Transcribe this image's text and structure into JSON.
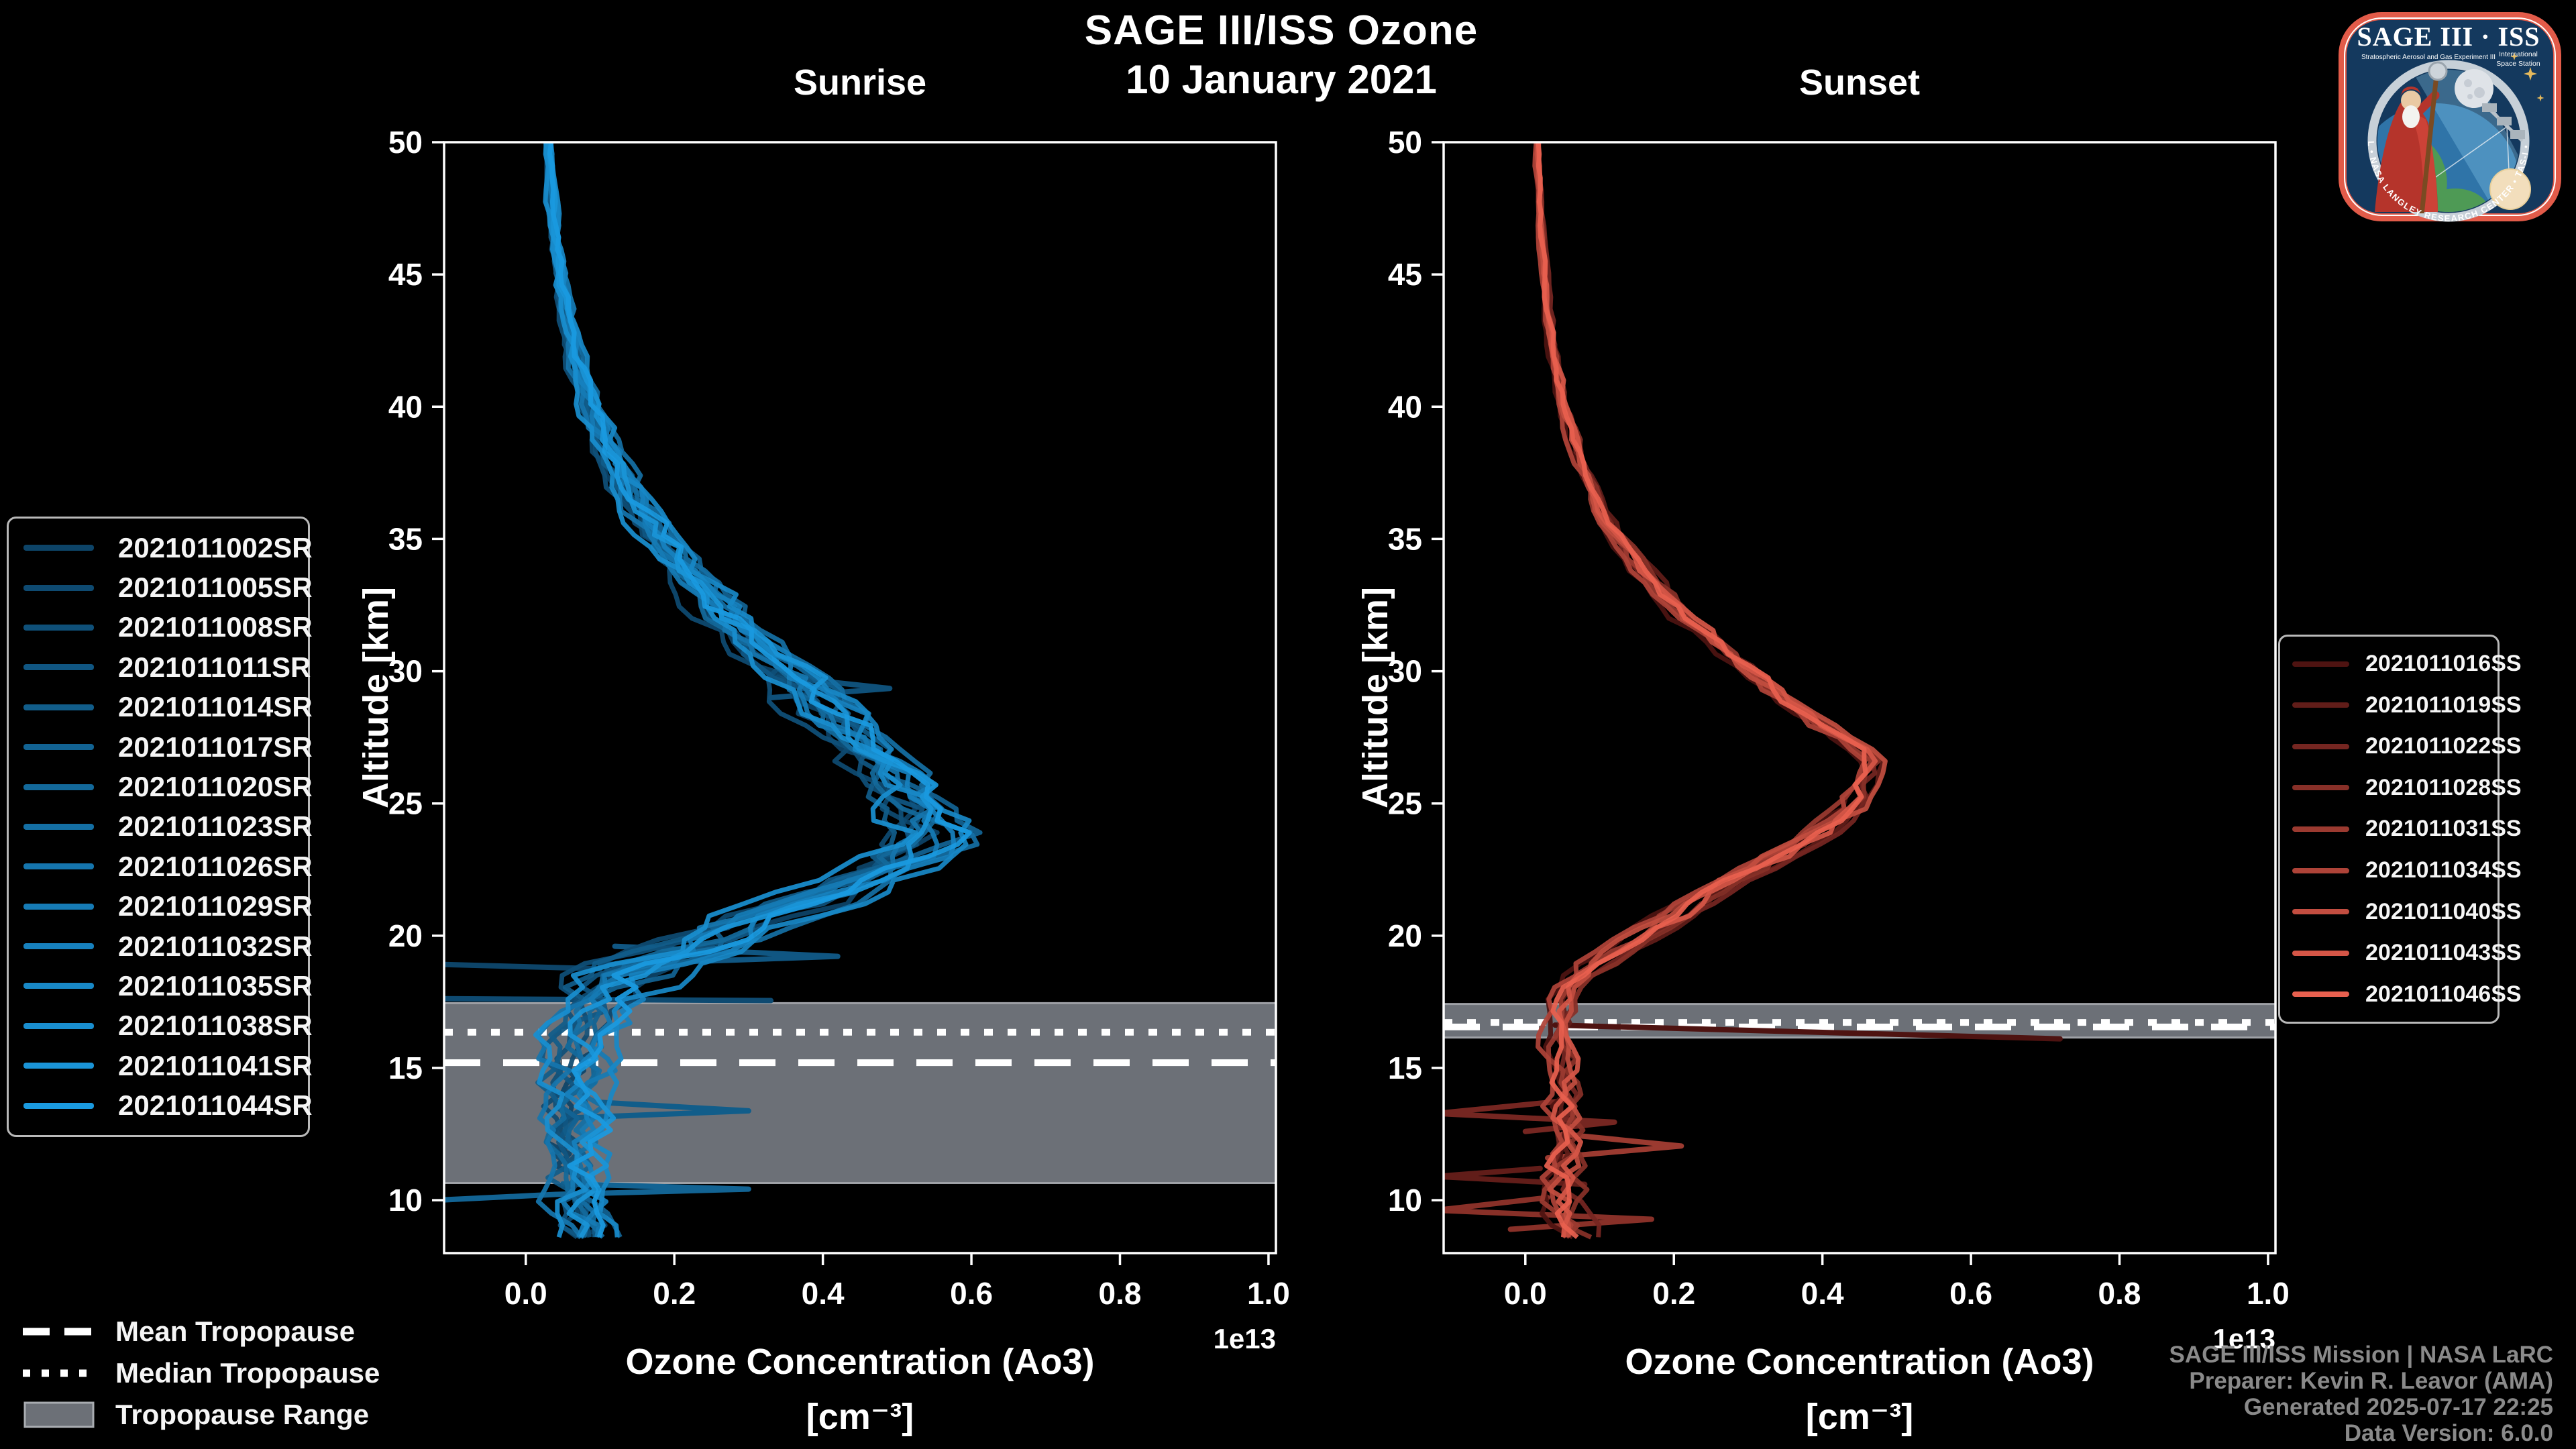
{
  "header": {
    "title": "SAGE III/ISS Ozone",
    "date": "10 January 2021"
  },
  "logo": {
    "title": "SAGE III · ISS",
    "subtitle": "Stratospheric Aerosol and Gas Experiment III",
    "iss_line1": "International",
    "iss_line2": "Space Station",
    "ring_text": "BALL • NASA LANGLEY RESEARCH CENTER • TAS-I • ESA"
  },
  "tropopause_legend": {
    "mean": "Mean Tropopause",
    "median": "Median Tropopause",
    "range": "Tropopause Range"
  },
  "footer": {
    "line1": "SAGE III/ISS Mission | NASA LaRC",
    "line2": "Preparer: Kevin R. Leavor (AMA)",
    "line3": "Generated 2025-07-17 22:25",
    "line4": "Data Version: 6.0.0"
  },
  "colors": {
    "background": "#000000",
    "text": "#ffffff",
    "footer_text": "#8a8a8a",
    "band": "#6C7077",
    "band_edge": "#9EA1A6",
    "legend_border": "#b9b9b9",
    "tropopause_line": "#ffffff"
  },
  "chart_data": [
    {
      "type": "line",
      "title": "Sunrise",
      "xlabel": "Ozone Concentration (Ao3)",
      "xlabel_units": "[cm⁻³]",
      "ylabel": "Altitude [km]",
      "axis_offset_label": "1e13",
      "xlim": [
        -0.11,
        1.01
      ],
      "ylim": [
        8,
        50
      ],
      "xticks": [
        0.0,
        0.2,
        0.4,
        0.6,
        0.8,
        1.0
      ],
      "yticks": [
        10,
        15,
        20,
        25,
        30,
        35,
        40,
        45,
        50
      ],
      "x_units_scale": "1e13 cm^-3",
      "legend_position": "left",
      "tropopause": {
        "mean_km": 15.2,
        "median_km": 16.35,
        "range_km": [
          10.65,
          17.45
        ]
      },
      "mean_profile": [
        [
          50,
          0.03
        ],
        [
          48,
          0.035
        ],
        [
          46,
          0.04
        ],
        [
          44,
          0.05
        ],
        [
          42,
          0.065
        ],
        [
          40,
          0.085
        ],
        [
          38,
          0.115
        ],
        [
          36,
          0.155
        ],
        [
          34,
          0.205
        ],
        [
          32,
          0.27
        ],
        [
          30,
          0.345
        ],
        [
          28,
          0.42
        ],
        [
          27,
          0.455
        ],
        [
          26,
          0.49
        ],
        [
          25,
          0.525
        ],
        [
          24,
          0.55
        ],
        [
          23.5,
          0.55
        ],
        [
          23,
          0.52
        ],
        [
          22,
          0.45
        ],
        [
          21,
          0.36
        ],
        [
          20,
          0.27
        ],
        [
          19,
          0.17
        ],
        [
          18.5,
          0.13
        ],
        [
          18,
          0.105
        ],
        [
          17.5,
          0.09
        ],
        [
          17,
          0.08
        ],
        [
          16,
          0.07
        ],
        [
          15,
          0.065
        ],
        [
          14,
          0.06
        ],
        [
          13,
          0.06
        ],
        [
          12,
          0.06
        ],
        [
          11,
          0.06
        ],
        [
          10,
          0.065
        ],
        [
          9,
          0.07
        ],
        [
          8,
          0.07
        ]
      ],
      "spread_profile": [
        [
          50,
          0.004
        ],
        [
          45,
          0.007
        ],
        [
          40,
          0.012
        ],
        [
          35,
          0.022
        ],
        [
          32,
          0.03
        ],
        [
          30,
          0.035
        ],
        [
          28,
          0.04
        ],
        [
          26,
          0.045
        ],
        [
          24,
          0.05
        ],
        [
          22,
          0.055
        ],
        [
          20,
          0.06
        ],
        [
          19,
          0.06
        ],
        [
          18,
          0.055
        ],
        [
          17,
          0.045
        ],
        [
          16,
          0.04
        ],
        [
          14,
          0.038
        ],
        [
          12,
          0.038
        ],
        [
          10,
          0.038
        ],
        [
          8,
          0.035
        ]
      ],
      "series": [
        {
          "label": "2021011002SR",
          "color": "#0D4468"
        },
        {
          "label": "2021011005SR",
          "color": "#0E4A71"
        },
        {
          "label": "2021011008SR",
          "color": "#0F5079"
        },
        {
          "label": "2021011011SR",
          "color": "#105682"
        },
        {
          "label": "2021011014SR",
          "color": "#115D8A"
        },
        {
          "label": "2021011017SR",
          "color": "#126393"
        },
        {
          "label": "2021011020SR",
          "color": "#13699B"
        },
        {
          "label": "2021011023SR",
          "color": "#146FA4"
        },
        {
          "label": "2021011026SR",
          "color": "#1575AD"
        },
        {
          "label": "2021011029SR",
          "color": "#167BB5"
        },
        {
          "label": "2021011032SR",
          "color": "#1781BE"
        },
        {
          "label": "2021011035SR",
          "color": "#1888C6"
        },
        {
          "label": "2021011038SR",
          "color": "#198ECF"
        },
        {
          "label": "2021011041SR",
          "color": "#1A94D7"
        },
        {
          "label": "2021011044SR",
          "color": "#1A9AE0"
        }
      ],
      "outliers": [
        {
          "color": "#0E4A71",
          "points": [
            [
              -0.12,
              17.62
            ],
            [
              0.33,
              17.55
            ]
          ]
        },
        {
          "color": "#0D4468",
          "points": [
            [
              -0.12,
              18.92
            ],
            [
              0.1,
              18.75
            ]
          ]
        },
        {
          "color": "#105682",
          "points": [
            [
              0.12,
              19.6
            ],
            [
              0.42,
              19.22
            ],
            [
              0.1,
              18.9
            ]
          ]
        },
        {
          "color": "#0F5079",
          "points": [
            [
              0.34,
              29.8
            ],
            [
              0.49,
              29.35
            ],
            [
              0.33,
              29.0
            ]
          ]
        },
        {
          "color": "#115D8A",
          "points": [
            [
              0.1,
              13.7
            ],
            [
              0.3,
              13.38
            ],
            [
              0.05,
              13.1
            ]
          ]
        },
        {
          "color": "#126393",
          "points": [
            [
              0.05,
              10.62
            ],
            [
              0.3,
              10.42
            ],
            [
              0.04,
              10.22
            ],
            [
              -0.12,
              10.0
            ]
          ]
        }
      ]
    },
    {
      "type": "line",
      "title": "Sunset",
      "xlabel": "Ozone Concentration (Ao3)",
      "xlabel_units": "[cm⁻³]",
      "ylabel": "Altitude [km]",
      "axis_offset_label": "1e13",
      "xlim": [
        -0.11,
        1.01
      ],
      "ylim": [
        8,
        50
      ],
      "xticks": [
        0.0,
        0.2,
        0.4,
        0.6,
        0.8,
        1.0
      ],
      "yticks": [
        10,
        15,
        20,
        25,
        30,
        35,
        40,
        45,
        50
      ],
      "x_units_scale": "1e13 cm^-3",
      "legend_position": "right",
      "tropopause": {
        "mean_km": 16.55,
        "median_km": 16.72,
        "range_km": [
          16.15,
          17.42
        ]
      },
      "mean_profile": [
        [
          50,
          0.015
        ],
        [
          48,
          0.018
        ],
        [
          46,
          0.022
        ],
        [
          44,
          0.028
        ],
        [
          42,
          0.038
        ],
        [
          40,
          0.052
        ],
        [
          38,
          0.072
        ],
        [
          36,
          0.1
        ],
        [
          34,
          0.15
        ],
        [
          32,
          0.215
        ],
        [
          30,
          0.3
        ],
        [
          29,
          0.345
        ],
        [
          28,
          0.395
        ],
        [
          27.5,
          0.425
        ],
        [
          27,
          0.455
        ],
        [
          26.5,
          0.465
        ],
        [
          26,
          0.455
        ],
        [
          25,
          0.44
        ],
        [
          24,
          0.4
        ],
        [
          23,
          0.335
        ],
        [
          22,
          0.27
        ],
        [
          21,
          0.21
        ],
        [
          20,
          0.15
        ],
        [
          19,
          0.095
        ],
        [
          18,
          0.055
        ],
        [
          17,
          0.04
        ],
        [
          16,
          0.04
        ],
        [
          15,
          0.048
        ],
        [
          14,
          0.05
        ],
        [
          13,
          0.05
        ],
        [
          12,
          0.05
        ],
        [
          11,
          0.05
        ],
        [
          10,
          0.05
        ],
        [
          9,
          0.06
        ],
        [
          8,
          0.075
        ]
      ],
      "spread_profile": [
        [
          50,
          0.003
        ],
        [
          45,
          0.004
        ],
        [
          40,
          0.006
        ],
        [
          35,
          0.01
        ],
        [
          30,
          0.015
        ],
        [
          28,
          0.017
        ],
        [
          26,
          0.018
        ],
        [
          24,
          0.02
        ],
        [
          22,
          0.022
        ],
        [
          20,
          0.02
        ],
        [
          18,
          0.016
        ],
        [
          16,
          0.018
        ],
        [
          14,
          0.022
        ],
        [
          12,
          0.024
        ],
        [
          10,
          0.028
        ],
        [
          8,
          0.03
        ]
      ],
      "series": [
        {
          "label": "2021011016SS",
          "color": "#4E1311"
        },
        {
          "label": "2021011019SS",
          "color": "#611D19"
        },
        {
          "label": "2021011022SS",
          "color": "#752621"
        },
        {
          "label": "2021011028SS",
          "color": "#883028"
        },
        {
          "label": "2021011031SS",
          "color": "#9B3A30"
        },
        {
          "label": "2021011034SS",
          "color": "#AE4338"
        },
        {
          "label": "2021011040SS",
          "color": "#C24D40"
        },
        {
          "label": "2021011043SS",
          "color": "#D55647"
        },
        {
          "label": "2021011046SS",
          "color": "#E8604F"
        }
      ],
      "outliers": [
        {
          "color": "#4E1311",
          "points": [
            [
              0.04,
              16.62
            ],
            [
              0.72,
              16.1
            ]
          ]
        },
        {
          "color": "#752621",
          "points": [
            [
              0.05,
              13.75
            ],
            [
              -0.12,
              13.28
            ],
            [
              0.12,
              12.95
            ],
            [
              0.0,
              12.6
            ]
          ]
        },
        {
          "color": "#883028",
          "points": [
            [
              0.03,
              10.1
            ],
            [
              -0.12,
              9.62
            ],
            [
              0.17,
              9.28
            ],
            [
              -0.02,
              8.9
            ]
          ]
        },
        {
          "color": "#9B3A30",
          "points": [
            [
              0.05,
              12.5
            ],
            [
              0.21,
              12.05
            ],
            [
              0.03,
              11.6
            ]
          ]
        },
        {
          "color": "#611D19",
          "points": [
            [
              0.02,
              11.2
            ],
            [
              -0.12,
              10.9
            ],
            [
              0.08,
              10.6
            ]
          ]
        }
      ]
    }
  ]
}
